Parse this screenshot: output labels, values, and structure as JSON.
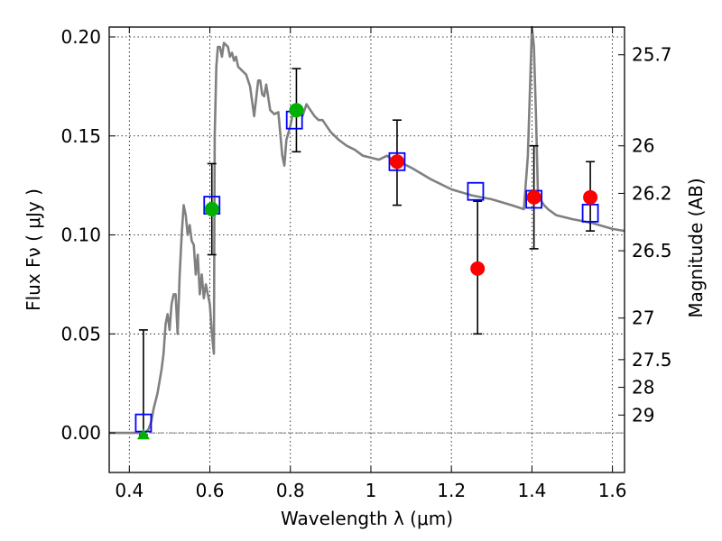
{
  "chart_data": {
    "type": "scatter",
    "title": "",
    "xlabel": "Wavelength  λ (μm)",
    "ylabel": "Flux  Fν  ( μJy )",
    "y2label": "Magnitude (AB)",
    "xlim": [
      0.35,
      1.63
    ],
    "ylim": [
      -0.02,
      0.205
    ],
    "grid": true,
    "x_ticks": [
      0.4,
      0.6,
      0.8,
      1.0,
      1.2,
      1.4,
      1.6
    ],
    "x_tick_labels": [
      "0.4",
      "0.6",
      "0.8",
      "1",
      "1.2",
      "1.4",
      "1.6"
    ],
    "y_ticks": [
      0.0,
      0.05,
      0.1,
      0.15,
      0.2
    ],
    "y_tick_labels": [
      "0.00",
      "0.05",
      "0.10",
      "0.15",
      "0.20"
    ],
    "y2_ticks": [
      {
        "label": "25.7",
        "flux": 0.191
      },
      {
        "label": "26",
        "flux": 0.145
      },
      {
        "label": "26.2",
        "flux": 0.121
      },
      {
        "label": "26.5",
        "flux": 0.092
      },
      {
        "label": "27",
        "flux": 0.058
      },
      {
        "label": "27.5",
        "flux": 0.037
      },
      {
        "label": "28",
        "flux": 0.023
      },
      {
        "label": "29",
        "flux": 0.009
      }
    ],
    "sed_model": {
      "color": "#808080",
      "x": [
        0.35,
        0.44,
        0.448,
        0.455,
        0.46,
        0.465,
        0.47,
        0.48,
        0.485,
        0.49,
        0.495,
        0.5,
        0.505,
        0.51,
        0.515,
        0.52,
        0.525,
        0.53,
        0.535,
        0.54,
        0.545,
        0.55,
        0.555,
        0.56,
        0.565,
        0.57,
        0.575,
        0.58,
        0.585,
        0.59,
        0.595,
        0.6,
        0.605,
        0.61,
        0.612,
        0.616,
        0.62,
        0.625,
        0.63,
        0.635,
        0.64,
        0.645,
        0.65,
        0.655,
        0.66,
        0.665,
        0.67,
        0.68,
        0.69,
        0.7,
        0.71,
        0.72,
        0.725,
        0.73,
        0.735,
        0.74,
        0.75,
        0.76,
        0.77,
        0.78,
        0.785,
        0.79,
        0.8,
        0.81,
        0.82,
        0.83,
        0.84,
        0.85,
        0.86,
        0.87,
        0.88,
        0.89,
        0.9,
        0.92,
        0.94,
        0.96,
        0.98,
        1.0,
        1.02,
        1.04,
        1.06,
        1.08,
        1.1,
        1.15,
        1.2,
        1.25,
        1.3,
        1.35,
        1.38,
        1.39,
        1.4,
        1.405,
        1.41,
        1.415,
        1.42,
        1.43,
        1.44,
        1.46,
        1.5,
        1.55,
        1.6,
        1.63
      ],
      "y": [
        0.0,
        0.0,
        0.002,
        0.006,
        0.012,
        0.016,
        0.02,
        0.032,
        0.04,
        0.055,
        0.06,
        0.052,
        0.065,
        0.07,
        0.07,
        0.05,
        0.08,
        0.1,
        0.115,
        0.11,
        0.1,
        0.105,
        0.097,
        0.095,
        0.08,
        0.09,
        0.07,
        0.08,
        0.068,
        0.075,
        0.07,
        0.065,
        0.05,
        0.04,
        0.15,
        0.185,
        0.195,
        0.195,
        0.19,
        0.197,
        0.196,
        0.195,
        0.19,
        0.192,
        0.188,
        0.19,
        0.185,
        0.183,
        0.181,
        0.175,
        0.16,
        0.178,
        0.178,
        0.171,
        0.17,
        0.176,
        0.163,
        0.161,
        0.162,
        0.14,
        0.135,
        0.148,
        0.155,
        0.165,
        0.163,
        0.16,
        0.166,
        0.163,
        0.16,
        0.158,
        0.158,
        0.155,
        0.152,
        0.148,
        0.145,
        0.143,
        0.14,
        0.139,
        0.138,
        0.14,
        0.137,
        0.136,
        0.134,
        0.128,
        0.123,
        0.12,
        0.118,
        0.115,
        0.113,
        0.14,
        0.205,
        0.195,
        0.16,
        0.12,
        0.118,
        0.115,
        0.113,
        0.11,
        0.108,
        0.106,
        0.103,
        0.102
      ]
    },
    "model_fluxes": {
      "name": "",
      "marker": "open-square",
      "color": "#0000ff",
      "points": [
        {
          "x": 0.435,
          "y": 0.005
        },
        {
          "x": 0.605,
          "y": 0.115
        },
        {
          "x": 0.81,
          "y": 0.158
        },
        {
          "x": 1.065,
          "y": 0.137
        },
        {
          "x": 1.26,
          "y": 0.122
        },
        {
          "x": 1.405,
          "y": 0.118
        },
        {
          "x": 1.545,
          "y": 0.111
        }
      ]
    },
    "observed_green": {
      "name": "",
      "marker": "filled-circle",
      "color": "#00b000",
      "points": [
        {
          "x": 0.605,
          "y": 0.113,
          "err_low": 0.09,
          "err_high": 0.136
        },
        {
          "x": 0.815,
          "y": 0.163,
          "err_low": 0.142,
          "err_high": 0.184
        }
      ]
    },
    "observed_red": {
      "name": "",
      "marker": "filled-circle",
      "color": "#ff0000",
      "points": [
        {
          "x": 1.065,
          "y": 0.137,
          "err_low": 0.115,
          "err_high": 0.158
        },
        {
          "x": 1.265,
          "y": 0.083,
          "err_low": 0.05,
          "err_high": 0.117
        },
        {
          "x": 1.405,
          "y": 0.119,
          "err_low": 0.093,
          "err_high": 0.145
        },
        {
          "x": 1.545,
          "y": 0.119,
          "err_low": 0.102,
          "err_high": 0.137
        }
      ]
    },
    "upper_limit": {
      "name": "",
      "marker": "triangle",
      "color": "#00b000",
      "points": [
        {
          "x": 0.435,
          "y": -0.001,
          "err_low": -0.001,
          "err_high": 0.052
        }
      ]
    }
  }
}
